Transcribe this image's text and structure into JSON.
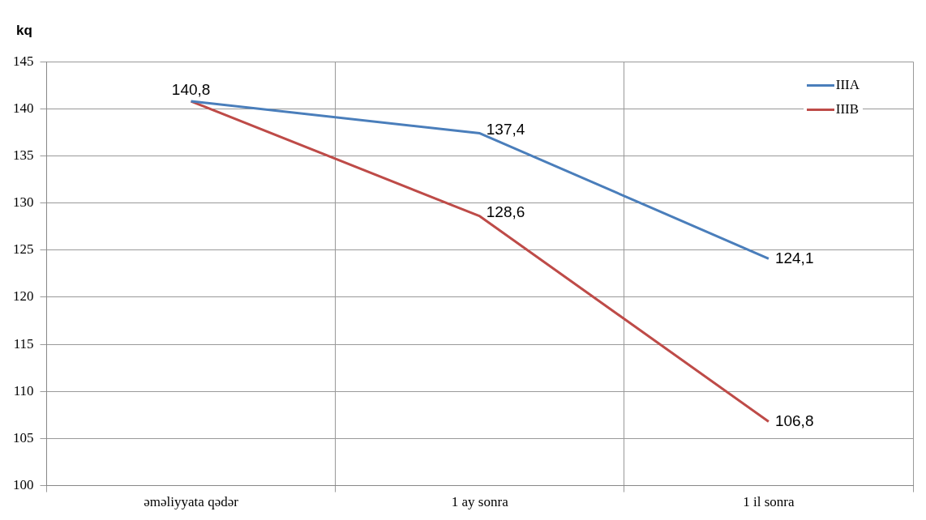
{
  "chart_data": {
    "type": "line",
    "ylabel": "kq",
    "categories": [
      "əməliyyata qədər",
      "1 ay sonra",
      "1 il sonra"
    ],
    "series": [
      {
        "name": "IIIA",
        "color": "#4a7ebb",
        "values": [
          140.8,
          137.4,
          124.1
        ],
        "value_labels": [
          "140,8",
          "137,4",
          "124,1"
        ]
      },
      {
        "name": "IIIB",
        "color": "#be4b48",
        "values": [
          140.8,
          128.6,
          106.8
        ],
        "value_labels": [
          null,
          "128,6",
          "106,8"
        ]
      }
    ],
    "ylim": [
      100,
      145
    ],
    "yticks": [
      100,
      105,
      110,
      115,
      120,
      125,
      130,
      135,
      140,
      145
    ],
    "grid": true,
    "legend": "top right",
    "marker": "none",
    "line_style": "solid"
  }
}
